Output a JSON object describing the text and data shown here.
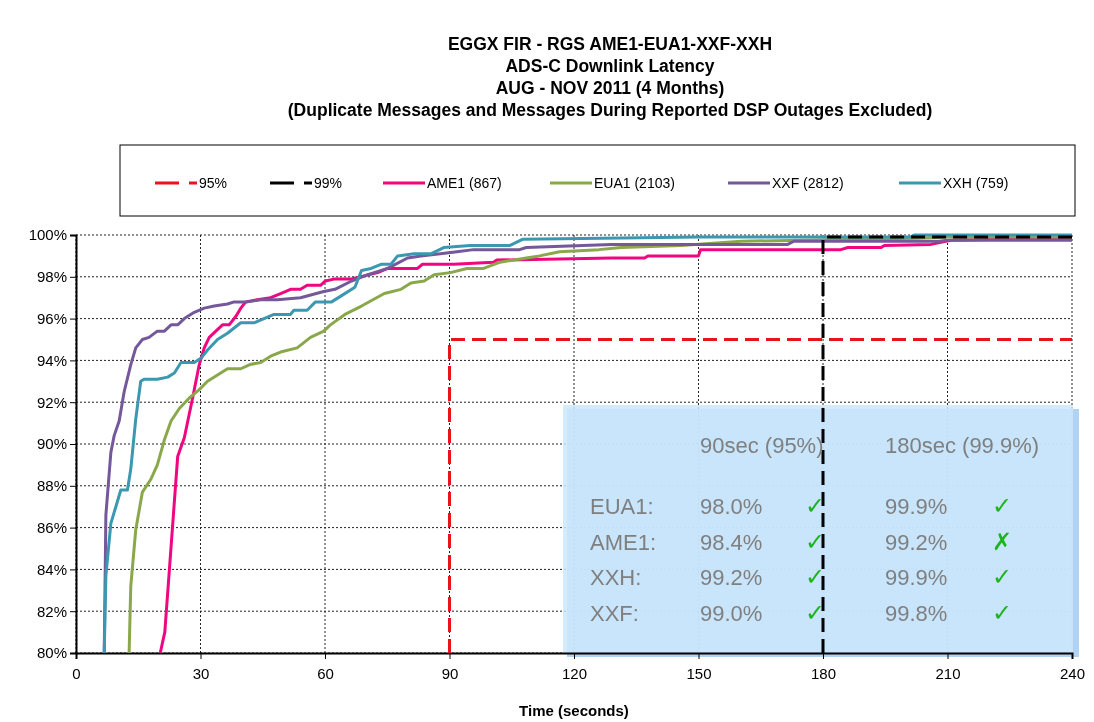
{
  "chart_data": {
    "type": "line",
    "title": "EGGX FIR - RGS AME1-EUA1-XXF-XXH\nADS-C Downlink Latency\nAUG - NOV 2011 (4 Months)\n(Duplicate Messages and Messages During Reported DSP Outages Excluded)",
    "xlabel": "Time (seconds)",
    "xlim": [
      0,
      240
    ],
    "xticks": [
      0,
      30,
      60,
      90,
      120,
      150,
      180,
      210,
      240
    ],
    "ylim": [
      80,
      100
    ],
    "yticks": [
      {
        "value": 80,
        "label": "80%"
      },
      {
        "value": 82,
        "label": "82%"
      },
      {
        "value": 84,
        "label": "84%"
      },
      {
        "value": 86,
        "label": "86%"
      },
      {
        "value": 88,
        "label": "88%"
      },
      {
        "value": 90,
        "label": "90%"
      },
      {
        "value": 92,
        "label": "92%"
      },
      {
        "value": 94,
        "label": "94%"
      },
      {
        "value": 96,
        "label": "96%"
      },
      {
        "value": 98,
        "label": "98%"
      },
      {
        "value": 100,
        "label": "100%"
      }
    ],
    "grid": true,
    "legend": "top",
    "marker": "none",
    "series": [
      {
        "name": "95%",
        "color": "#e8141c",
        "line_style": "dashed",
        "x": [
          90,
          90,
          240
        ],
        "values": [
          80,
          95,
          95
        ]
      },
      {
        "name": "99%",
        "color": "#000000",
        "line_style": "dashed",
        "x": [
          180,
          180,
          240
        ],
        "values": [
          80,
          99.9,
          99.9
        ]
      },
      {
        "name": "AME1 (867)",
        "color": "#f0077f",
        "line_style": "solid",
        "x": [
          20.3,
          21.4,
          24.5,
          26.1,
          28.1,
          29.7,
          30.9,
          32.1,
          33.7,
          35.3,
          36.9,
          38.5,
          39.7,
          40.9,
          43.7,
          46.9,
          49.3,
          51.7,
          54.1,
          55.7,
          59,
          60.1,
          62.4,
          66.4,
          72.7,
          75.1,
          82.3,
          83.5,
          91,
          100.6,
          101.4,
          129,
          137,
          137.8,
          150,
          150.5,
          184.3,
          186,
          194,
          194.8,
          206,
          210.8,
          240
        ],
        "values": [
          80,
          81,
          89.4,
          90.3,
          92.2,
          93.8,
          94.6,
          95.1,
          95.4,
          95.7,
          95.7,
          96.1,
          96.5,
          96.8,
          96.9,
          97,
          97.2,
          97.4,
          97.4,
          97.6,
          97.6,
          97.8,
          97.9,
          97.9,
          98.2,
          98.4,
          98.4,
          98.6,
          98.6,
          98.7,
          98.8,
          98.9,
          98.9,
          99,
          99,
          99.3,
          99.3,
          99.4,
          99.4,
          99.5,
          99.55,
          99.75,
          99.85
        ]
      },
      {
        "name": "EUA1 (2103)",
        "color": "#8aa84b",
        "line_style": "solid",
        "x": [
          12.8,
          13.2,
          14.4,
          16,
          18,
          19.6,
          21.3,
          22.9,
          24.9,
          27.3,
          29.7,
          31.7,
          34.1,
          36.5,
          39.7,
          41.9,
          44.5,
          46.9,
          49.3,
          53.3,
          56.5,
          59.7,
          61.3,
          64.8,
          68.8,
          74.3,
          78.3,
          80.7,
          83.9,
          86.3,
          90.2,
          94.2,
          98.2,
          102.2,
          108.5,
          111.7,
          116.5,
          126,
          131.4,
          145.8,
          160.3,
          202,
          210,
          240
        ],
        "values": [
          80,
          83.2,
          85.9,
          87.7,
          88.3,
          89,
          90.2,
          91.1,
          91.7,
          92.2,
          92.6,
          93,
          93.3,
          93.6,
          93.6,
          93.8,
          93.9,
          94.2,
          94.4,
          94.6,
          95.1,
          95.4,
          95.7,
          96.2,
          96.6,
          97.2,
          97.4,
          97.7,
          97.8,
          98.1,
          98.2,
          98.4,
          98.4,
          98.7,
          98.9,
          99,
          99.2,
          99.3,
          99.4,
          99.5,
          99.7,
          99.85,
          99.9,
          99.9
        ]
      },
      {
        "name": "XXF (2812)",
        "color": "#74589a",
        "line_style": "solid",
        "x": [
          6.8,
          7.2,
          8.4,
          9.2,
          10.4,
          11.6,
          13.2,
          14.4,
          16,
          17.6,
          19.6,
          21.3,
          22.9,
          24.5,
          26.1,
          28.5,
          30.9,
          33.3,
          36.5,
          38.1,
          41.3,
          44.5,
          48.5,
          54.1,
          59.7,
          62.4,
          66.4,
          70.3,
          75.1,
          79.9,
          83.1,
          87.8,
          91.8,
          95.8,
          106.9,
          108.5,
          129,
          171.5,
          173,
          208,
          210,
          240
        ],
        "values": [
          80,
          86.6,
          89.6,
          90.4,
          91.1,
          92.5,
          93.8,
          94.6,
          95,
          95.1,
          95.4,
          95.4,
          95.7,
          95.7,
          96,
          96.3,
          96.5,
          96.6,
          96.7,
          96.8,
          96.8,
          96.9,
          96.9,
          97,
          97.3,
          97.4,
          97.8,
          98.1,
          98.4,
          98.9,
          99,
          99.1,
          99.2,
          99.3,
          99.3,
          99.4,
          99.55,
          99.55,
          99.7,
          99.7,
          99.75,
          99.75
        ]
      },
      {
        "name": "XXH (759)",
        "color": "#3c97b0",
        "line_style": "solid",
        "x": [
          6.8,
          7.2,
          8.4,
          9.6,
          10.8,
          12.4,
          13.2,
          14.4,
          15.6,
          16.4,
          19.6,
          22.1,
          23.7,
          25.3,
          28.5,
          30.1,
          31.7,
          34.1,
          36.5,
          39.7,
          42.9,
          45.3,
          47.7,
          51.7,
          52.5,
          55.7,
          57.7,
          61.6,
          64,
          67.2,
          68.8,
          71.1,
          73.5,
          75.9,
          77.5,
          81.5,
          85.5,
          88.6,
          95,
          104.6,
          107.7,
          150,
          201,
          202,
          240
        ],
        "values": [
          80,
          83.7,
          86.2,
          87,
          87.8,
          87.8,
          88.8,
          91.2,
          93,
          93.1,
          93.1,
          93.2,
          93.4,
          93.9,
          93.9,
          94.1,
          94.5,
          95,
          95.3,
          95.8,
          95.8,
          96,
          96.2,
          96.2,
          96.4,
          96.4,
          96.8,
          96.8,
          97.1,
          97.5,
          98.3,
          98.4,
          98.6,
          98.6,
          99,
          99.1,
          99.1,
          99.4,
          99.5,
          99.5,
          99.8,
          99.9,
          99.9,
          100,
          100
        ]
      }
    ],
    "annotations": [
      "90sec (95%)",
      "180sec (99.9%)",
      "EUA1:",
      "98.0%",
      "✓",
      "99.9%",
      "✓",
      "AME1:",
      "98.4%",
      "✓",
      "99.2%",
      "✗",
      "XXH:",
      "99.2%",
      "✓",
      "99.9%",
      "✓",
      "XXF:",
      "99.0%",
      "✓",
      "99.8%",
      "✓"
    ]
  }
}
